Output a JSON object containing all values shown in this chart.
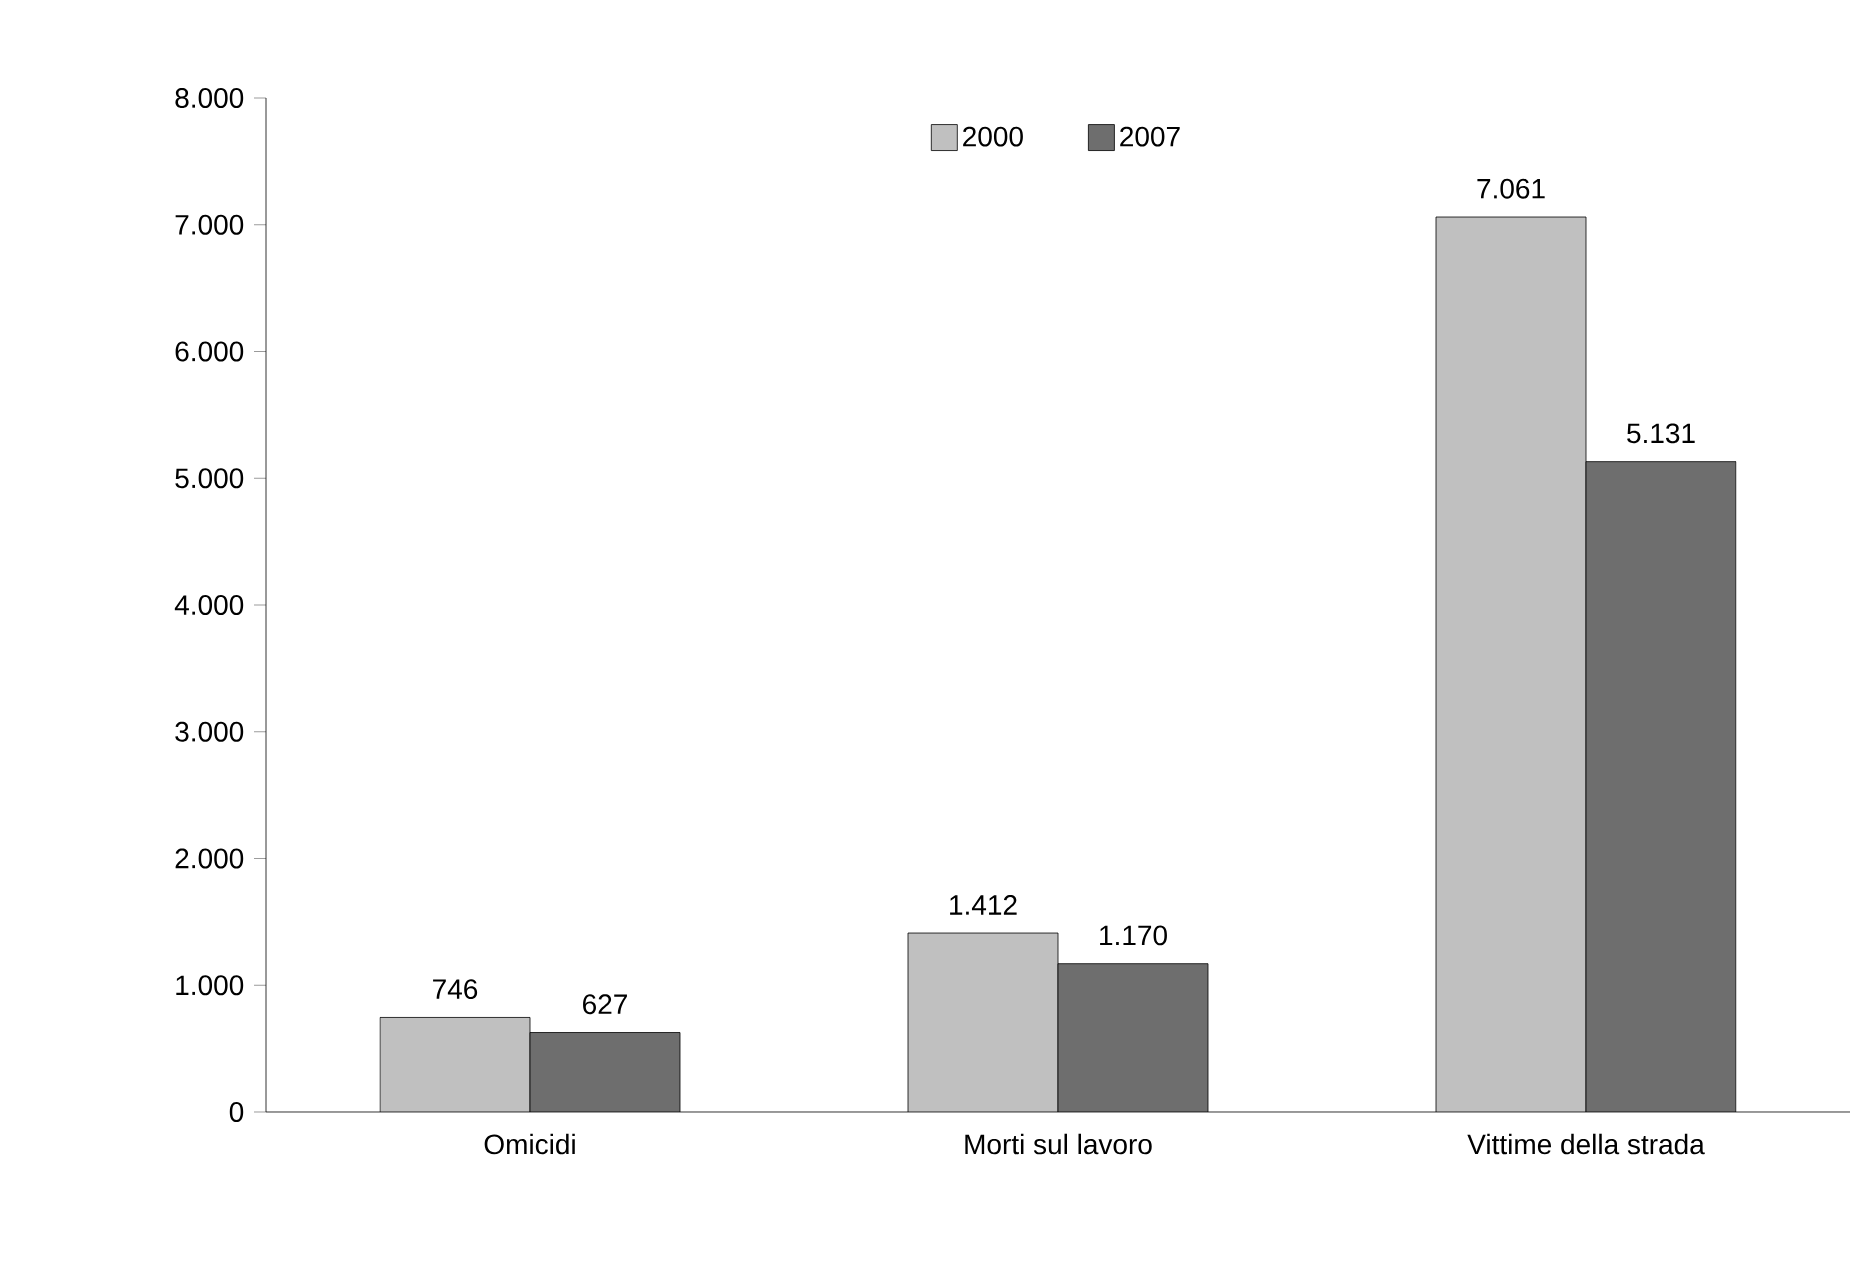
{
  "chart_data": {
    "type": "bar",
    "categories": [
      "Omicidi",
      "Morti sul lavoro",
      "Vittime della strada"
    ],
    "series": [
      {
        "name": "2000",
        "color": "#c0c0c0",
        "values": [
          746,
          1412,
          7061
        ],
        "value_labels": [
          "746",
          "1.412",
          "7.061"
        ]
      },
      {
        "name": "2007",
        "color": "#6e6e6e",
        "values": [
          627,
          1170,
          5131
        ],
        "value_labels": [
          "627",
          "1.170",
          "5.131"
        ]
      }
    ],
    "ylim": [
      0,
      8000
    ],
    "yticks": [
      {
        "value": 0,
        "label": "0"
      },
      {
        "value": 1000,
        "label": "1.000"
      },
      {
        "value": 2000,
        "label": "2.000"
      },
      {
        "value": 3000,
        "label": "3.000"
      },
      {
        "value": 4000,
        "label": "4.000"
      },
      {
        "value": 5000,
        "label": "5.000"
      },
      {
        "value": 6000,
        "label": "6.000"
      },
      {
        "value": 7000,
        "label": "7.000"
      },
      {
        "value": 8000,
        "label": "8.000"
      }
    ],
    "legend": "top"
  }
}
